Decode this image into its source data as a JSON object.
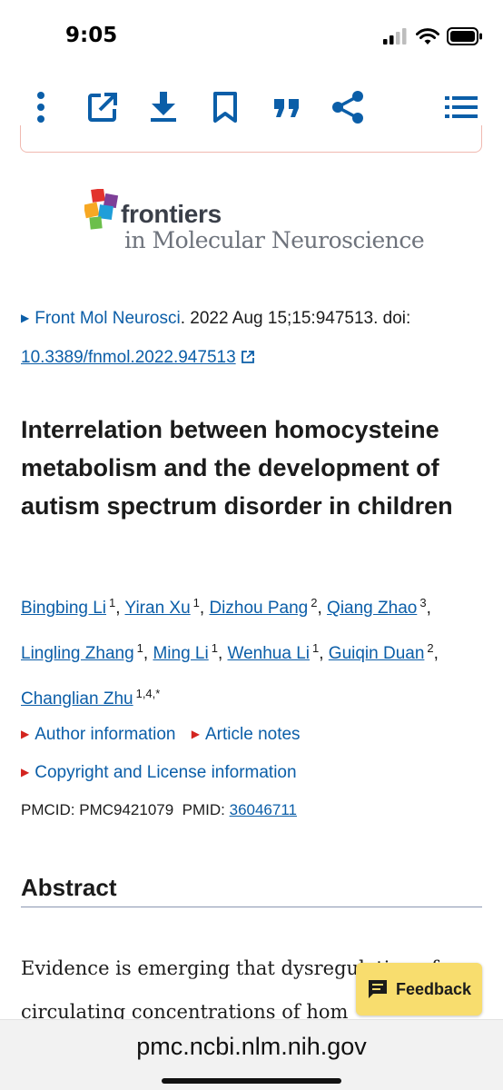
{
  "status": {
    "time": "9:05"
  },
  "toolbar": {
    "icons": [
      "more-vertical-icon",
      "open-external-icon",
      "download-icon",
      "bookmark-icon",
      "cite-quote-icon",
      "share-icon",
      "list-menu-icon"
    ],
    "color": "#0b5ea8"
  },
  "journal": {
    "logo_word": "frontiers",
    "logo_sub": "in Molecular Neuroscience"
  },
  "citation": {
    "journal_link": "Front Mol Neurosci",
    "details": ". 2022 Aug 15;15:947513. doi: ",
    "doi": "10.3389/fnmol.2022.947513"
  },
  "article": {
    "title": "Interrelation between homocysteine metabolism and the development of autism spectrum disorder in children"
  },
  "authors": [
    {
      "name": "Bingbing Li",
      "aff": "1"
    },
    {
      "name": "Yiran Xu",
      "aff": "1"
    },
    {
      "name": "Dizhou Pang",
      "aff": "2"
    },
    {
      "name": "Qiang Zhao",
      "aff": "3"
    },
    {
      "name": "Lingling Zhang",
      "aff": "1"
    },
    {
      "name": "Ming Li",
      "aff": "1"
    },
    {
      "name": "Wenhua Li",
      "aff": "1"
    },
    {
      "name": "Guiqin Duan",
      "aff": "2"
    },
    {
      "name": "Changlian Zhu",
      "aff": "1,4,*"
    }
  ],
  "info": {
    "author_information": "Author information",
    "article_notes": "Article notes",
    "copyright": "Copyright and License information"
  },
  "ids": {
    "pmcid_label": "PMCID: ",
    "pmcid": "PMC9421079",
    "pmid_label": "PMID: ",
    "pmid": "36046711"
  },
  "abstract": {
    "heading": "Abstract",
    "line1": "Evidence is emerging that dysregulation of",
    "line2": "circulating concentrations of hom"
  },
  "feedback": {
    "label": "Feedback"
  },
  "browser": {
    "url": "pmc.ncbi.nlm.nih.gov"
  }
}
